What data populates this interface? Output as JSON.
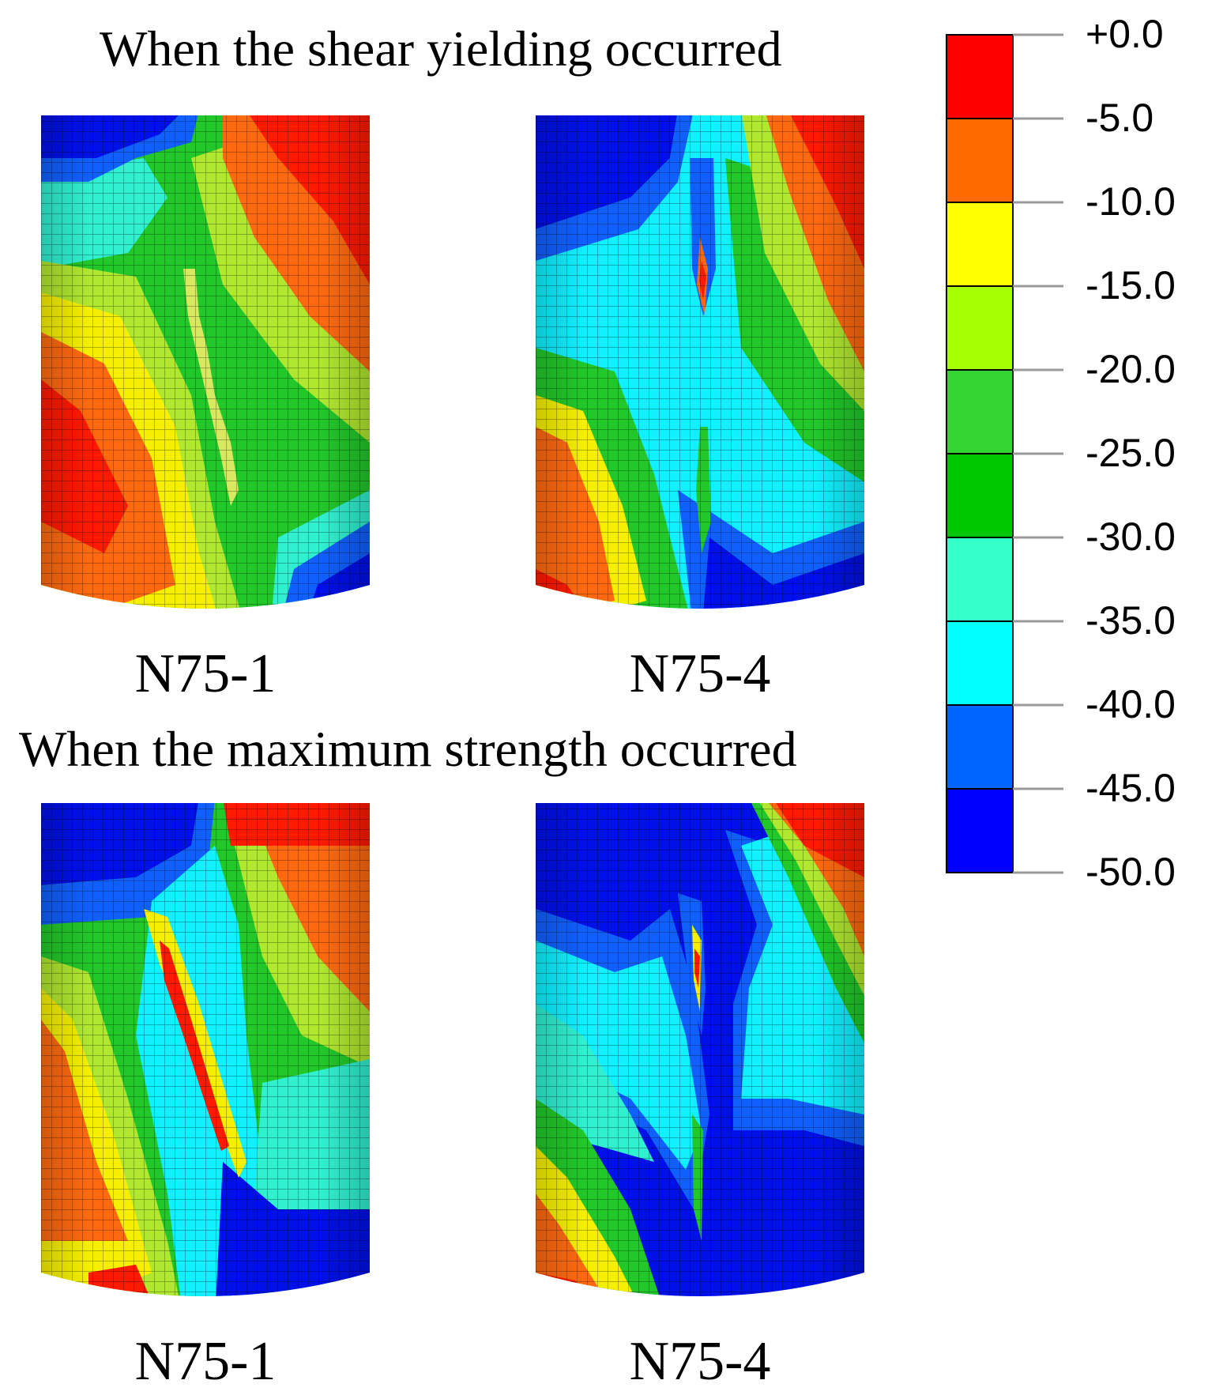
{
  "titles": {
    "top": "When the shear yielding occurred",
    "bottom": "When the maximum strength occurred"
  },
  "specimens": {
    "top_left": "N75-1",
    "top_right": "N75-4",
    "bottom_left": "N75-1",
    "bottom_right": "N75-4"
  },
  "legend": {
    "ticks": [
      "+0.0",
      "-5.0",
      "-10.0",
      "-15.0",
      "-20.0",
      "-25.0",
      "-30.0",
      "-35.0",
      "-40.0",
      "-45.0",
      "-50.0"
    ],
    "colors": [
      "#ff0000",
      "#ff6a00",
      "#ffff00",
      "#a6ff00",
      "#33d633",
      "#00c800",
      "#33ffc8",
      "#00ffff",
      "#0064ff",
      "#0000ff"
    ]
  },
  "colors": {
    "red": "#ff1a00",
    "orange": "#ff6a10",
    "yellow": "#f6f000",
    "lime": "#b0e830",
    "green": "#22c82a",
    "aqua": "#30f0d0",
    "cyan": "#10f0ff",
    "blue": "#1060ff",
    "navy": "#0010e8"
  }
}
